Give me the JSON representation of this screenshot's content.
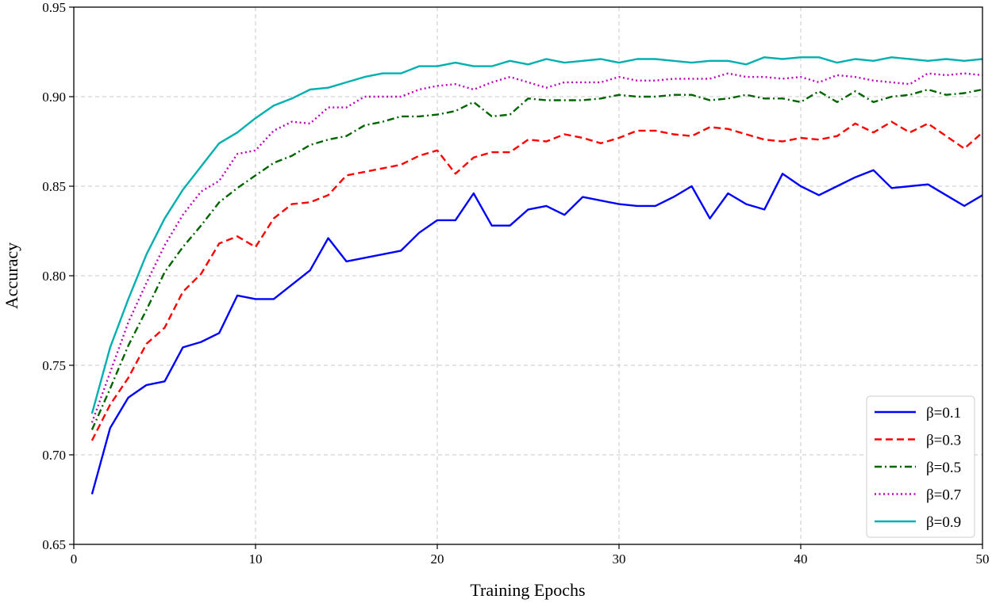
{
  "chart_data": {
    "type": "line",
    "xlabel": "Training Epochs",
    "ylabel": "Accuracy",
    "xlim": [
      0,
      50
    ],
    "ylim": [
      0.65,
      0.95
    ],
    "xticks": [
      0,
      10,
      20,
      30,
      40,
      50
    ],
    "xtick_labels": [
      "0",
      "10",
      "20",
      "30",
      "40",
      "50"
    ],
    "yticks": [
      0.65,
      0.7,
      0.75,
      0.8,
      0.85,
      0.9,
      0.95
    ],
    "ytick_labels": [
      "0.65",
      "0.70",
      "0.75",
      "0.80",
      "0.85",
      "0.90",
      "0.95"
    ],
    "grid": true,
    "legend_position": "bottom-right",
    "x": [
      1,
      2,
      3,
      4,
      5,
      6,
      7,
      8,
      9,
      10,
      11,
      12,
      13,
      14,
      15,
      16,
      17,
      18,
      19,
      20,
      21,
      22,
      23,
      24,
      25,
      26,
      27,
      28,
      29,
      30,
      31,
      32,
      33,
      34,
      35,
      36,
      37,
      38,
      39,
      40,
      41,
      42,
      43,
      44,
      45,
      46,
      47,
      48,
      49,
      50
    ],
    "series": [
      {
        "name": "β=0.1",
        "color": "#0000ff",
        "dash": "solid",
        "values": [
          0.678,
          0.715,
          0.732,
          0.739,
          0.741,
          0.76,
          0.763,
          0.768,
          0.789,
          0.787,
          0.787,
          0.795,
          0.803,
          0.821,
          0.808,
          0.81,
          0.812,
          0.814,
          0.824,
          0.831,
          0.831,
          0.846,
          0.828,
          0.828,
          0.837,
          0.839,
          0.834,
          0.844,
          0.842,
          0.84,
          0.839,
          0.839,
          0.844,
          0.85,
          0.832,
          0.846,
          0.84,
          0.837,
          0.857,
          0.85,
          0.845,
          0.85,
          0.855,
          0.859,
          0.849,
          0.85,
          0.851,
          0.845,
          0.839,
          0.845
        ]
      },
      {
        "name": "β=0.3",
        "color": "#ff0000",
        "dash": "dashed",
        "values": [
          0.708,
          0.728,
          0.743,
          0.762,
          0.771,
          0.791,
          0.801,
          0.818,
          0.822,
          0.816,
          0.832,
          0.84,
          0.841,
          0.845,
          0.856,
          0.858,
          0.86,
          0.862,
          0.867,
          0.87,
          0.857,
          0.866,
          0.869,
          0.869,
          0.876,
          0.875,
          0.879,
          0.877,
          0.874,
          0.877,
          0.881,
          0.881,
          0.879,
          0.878,
          0.883,
          0.882,
          0.879,
          0.876,
          0.875,
          0.877,
          0.876,
          0.878,
          0.885,
          0.88,
          0.886,
          0.88,
          0.885,
          0.878,
          0.871,
          0.88
        ]
      },
      {
        "name": "β=0.5",
        "color": "#006400",
        "dash": "dashdot",
        "values": [
          0.714,
          0.737,
          0.761,
          0.781,
          0.802,
          0.816,
          0.828,
          0.841,
          0.849,
          0.856,
          0.863,
          0.867,
          0.873,
          0.876,
          0.878,
          0.884,
          0.886,
          0.889,
          0.889,
          0.89,
          0.892,
          0.897,
          0.889,
          0.89,
          0.899,
          0.898,
          0.898,
          0.898,
          0.899,
          0.901,
          0.9,
          0.9,
          0.901,
          0.901,
          0.898,
          0.899,
          0.901,
          0.899,
          0.899,
          0.897,
          0.903,
          0.897,
          0.903,
          0.897,
          0.9,
          0.901,
          0.904,
          0.901,
          0.902,
          0.904
        ]
      },
      {
        "name": "β=0.7",
        "color": "#c000c0",
        "dash": "dotted",
        "values": [
          0.718,
          0.746,
          0.774,
          0.796,
          0.817,
          0.834,
          0.847,
          0.853,
          0.868,
          0.87,
          0.881,
          0.886,
          0.885,
          0.894,
          0.894,
          0.9,
          0.9,
          0.9,
          0.904,
          0.906,
          0.907,
          0.904,
          0.908,
          0.911,
          0.908,
          0.905,
          0.908,
          0.908,
          0.908,
          0.911,
          0.909,
          0.909,
          0.91,
          0.91,
          0.91,
          0.913,
          0.911,
          0.911,
          0.91,
          0.911,
          0.908,
          0.912,
          0.911,
          0.909,
          0.908,
          0.907,
          0.913,
          0.912,
          0.913,
          0.912
        ]
      },
      {
        "name": "β=0.9",
        "color": "#00b0b0",
        "dash": "solid",
        "values": [
          0.723,
          0.76,
          0.787,
          0.812,
          0.832,
          0.848,
          0.861,
          0.874,
          0.88,
          0.888,
          0.895,
          0.899,
          0.904,
          0.905,
          0.908,
          0.911,
          0.913,
          0.913,
          0.917,
          0.917,
          0.919,
          0.917,
          0.917,
          0.92,
          0.918,
          0.921,
          0.919,
          0.92,
          0.921,
          0.919,
          0.921,
          0.921,
          0.92,
          0.919,
          0.92,
          0.92,
          0.918,
          0.922,
          0.921,
          0.922,
          0.922,
          0.919,
          0.921,
          0.92,
          0.922,
          0.921,
          0.92,
          0.921,
          0.92,
          0.921
        ]
      }
    ]
  }
}
